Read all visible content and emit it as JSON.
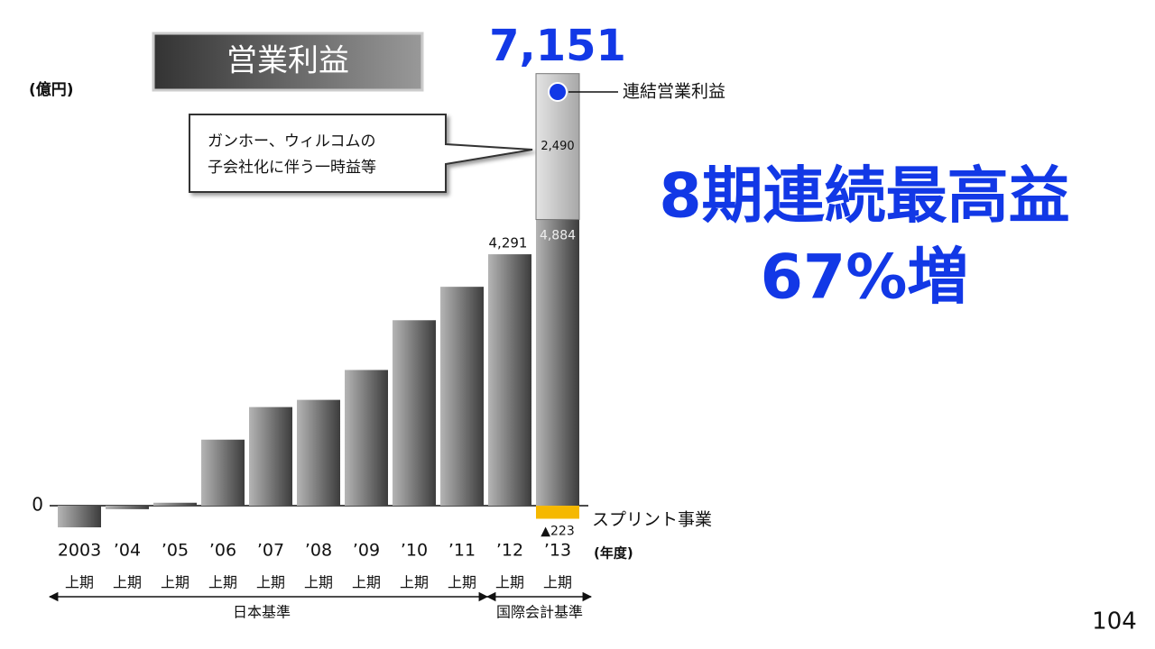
{
  "chart_data": {
    "type": "bar",
    "title": "営業利益",
    "unit_label": "(億円)",
    "x_label": "(年度)",
    "headline": [
      "8期連続最高益",
      "67%増"
    ],
    "callout": [
      "ガンホー、ウィルコムの",
      "子会社化に伴う一時益等"
    ],
    "total": 7151,
    "total_label": "7,151",
    "categories": [
      "2003",
      "’04",
      "’05",
      "’06",
      "’07",
      "’08",
      "’09",
      "’10",
      "’11",
      "’12",
      "’13"
    ],
    "period_labels": [
      "上期",
      "上期",
      "上期",
      "上期",
      "上期",
      "上期",
      "上期",
      "上期",
      "上期",
      "上期",
      "上期"
    ],
    "standards": [
      "日本基準",
      "国際会計基準"
    ],
    "series": [
      {
        "name": "連結営業利益",
        "color": "#555555",
        "values": [
          -370,
          -60,
          50,
          1127,
          1683,
          1806,
          2316,
          3165,
          3736,
          4291,
          4884
        ],
        "value_labels": [
          null,
          null,
          null,
          null,
          null,
          null,
          null,
          null,
          null,
          "4,291",
          "4,884"
        ]
      },
      {
        "color": "#bbbbbb",
        "values": [
          null,
          null,
          null,
          null,
          null,
          null,
          null,
          null,
          null,
          null,
          2490
        ],
        "value_labels": [
          null,
          null,
          null,
          null,
          null,
          null,
          null,
          null,
          null,
          null,
          "2,490"
        ]
      },
      {
        "name": "スプリント事業",
        "color": "#f5b800",
        "values": [
          null,
          null,
          null,
          null,
          null,
          null,
          null,
          null,
          null,
          null,
          -223
        ],
        "value_labels": [
          null,
          null,
          null,
          null,
          null,
          null,
          null,
          null,
          null,
          null,
          "▲223"
        ]
      }
    ],
    "ylim": [
      -600,
      7400
    ],
    "yticks": [
      0
    ],
    "grid": false,
    "page_number": "104"
  }
}
